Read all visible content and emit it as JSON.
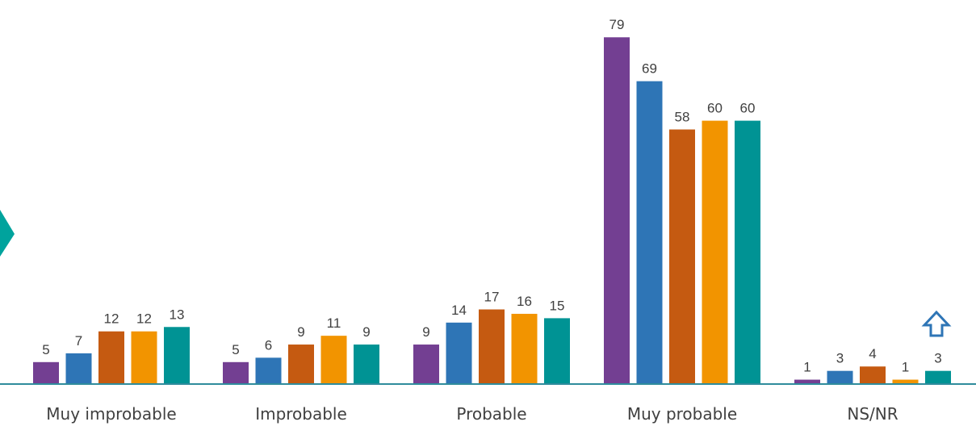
{
  "chart_data": {
    "type": "bar",
    "categories": [
      "Muy improbable",
      "Improbable",
      "Probable",
      "Muy probable",
      "NS/NR"
    ],
    "series": [
      {
        "values": [
          5,
          5,
          9,
          79,
          1
        ],
        "color": "#733F92"
      },
      {
        "values": [
          7,
          6,
          14,
          69,
          3
        ],
        "color": "#2E75B6"
      },
      {
        "values": [
          12,
          9,
          17,
          58,
          4
        ],
        "color": "#C55A11"
      },
      {
        "values": [
          12,
          11,
          16,
          60,
          1
        ],
        "color": "#F29400"
      },
      {
        "values": [
          13,
          9,
          15,
          60,
          3
        ],
        "color": "#009394"
      }
    ],
    "ylim": [
      0,
      80
    ],
    "grid": false,
    "legend": "none"
  },
  "decorations": {
    "left_marker_color": "#00A39D",
    "arrow_icon": "arrow-up-outline-icon",
    "arrow_color": "#2E75B6",
    "axis_color": "#2F8C9C"
  }
}
